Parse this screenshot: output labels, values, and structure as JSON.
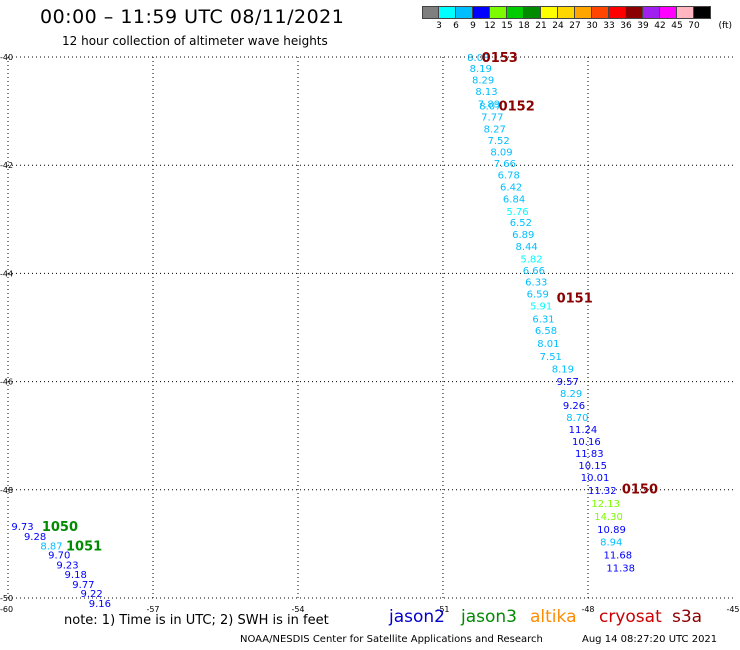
{
  "header": {
    "title": "00:00 – 11:59 UTC 08/11/2021",
    "subtitle": "12 hour collection of altimeter wave heights"
  },
  "colorbar": {
    "unit": "(ft)",
    "levels": [
      "3",
      "6",
      "9",
      "12",
      "15",
      "18",
      "21",
      "24",
      "27",
      "30",
      "33",
      "36",
      "39",
      "42",
      "45",
      "70"
    ],
    "colors": [
      "#7f7f7f",
      "#00ffff",
      "#00bfff",
      "#0000ff",
      "#7cfc00",
      "#00cd00",
      "#008b00",
      "#ffff00",
      "#ffd700",
      "#ffa500",
      "#ff4500",
      "#ff0000",
      "#8b0000",
      "#a020f0",
      "#ff00ff",
      "#ffb6c1",
      "#000000"
    ]
  },
  "footer": {
    "note": "note:  1) Time is in UTC; 2) SWH is in feet",
    "credit": "NOAA/NESDIS Center for Satellite Applications and Research",
    "timestamp": "Aug 14 08:27:20 UTC 2021"
  },
  "legend": [
    {
      "name": "jason2",
      "color": "#0000cc"
    },
    {
      "name": "jason3",
      "color": "#008b00"
    },
    {
      "name": "altika",
      "color": "#ff8c00"
    },
    {
      "name": "cryosat",
      "color": "#cc0000"
    },
    {
      "name": "s3a",
      "color": "#8b0000"
    }
  ],
  "chart_data": {
    "type": "scatter",
    "xlim": [
      -60,
      -45
    ],
    "ylim": [
      -50,
      -40
    ],
    "x_ticks": [
      -57,
      -54,
      -51,
      -48,
      -45
    ],
    "y_ticks": [
      -42,
      -44,
      -46,
      -48
    ],
    "corner_labels": {
      "x_left": "-60",
      "y_top": "-40",
      "y_bottom": "-50"
    },
    "grid": true,
    "time_labels": [
      {
        "label": "0153",
        "x": -50.2,
        "y": -40.0,
        "color": "#8b0000"
      },
      {
        "label": "0152",
        "x": -49.85,
        "y": -40.9,
        "color": "#8b0000"
      },
      {
        "label": "0151",
        "x": -48.65,
        "y": -44.45,
        "color": "#8b0000"
      },
      {
        "label": "0150",
        "x": -47.3,
        "y": -47.98,
        "color": "#8b0000"
      },
      {
        "label": "1050",
        "x": -59.3,
        "y": -48.67,
        "color": "#008b00"
      },
      {
        "label": "1051",
        "x": -58.8,
        "y": -49.03,
        "color": "#008b00"
      }
    ],
    "series": [
      {
        "color_key": "swh",
        "points": [
          {
            "x": -50.5,
            "y": -40.0,
            "v": "8.08",
            "c": "#00bfff"
          },
          {
            "x": -50.45,
            "y": -40.2,
            "v": "8.19",
            "c": "#00bfff"
          },
          {
            "x": -50.4,
            "y": -40.42,
            "v": "8.29",
            "c": "#00bfff"
          },
          {
            "x": -50.33,
            "y": -40.63,
            "v": "8.13",
            "c": "#00bfff"
          },
          {
            "x": -50.28,
            "y": -40.86,
            "v": "7.89",
            "c": "#00bfff"
          },
          {
            "x": -50.25,
            "y": -40.9,
            "v": "8.07",
            "c": "#00bfff"
          },
          {
            "x": -50.21,
            "y": -41.1,
            "v": "7.77",
            "c": "#00bfff"
          },
          {
            "x": -50.16,
            "y": -41.32,
            "v": "8.27",
            "c": "#00bfff"
          },
          {
            "x": -50.08,
            "y": -41.53,
            "v": "7.52",
            "c": "#00bfff"
          },
          {
            "x": -50.02,
            "y": -41.75,
            "v": "8.09",
            "c": "#00bfff"
          },
          {
            "x": -49.95,
            "y": -41.96,
            "v": "7.66",
            "c": "#00bfff"
          },
          {
            "x": -49.87,
            "y": -42.17,
            "v": "6.78",
            "c": "#00bfff"
          },
          {
            "x": -49.82,
            "y": -42.39,
            "v": "6.42",
            "c": "#00bfff"
          },
          {
            "x": -49.76,
            "y": -42.62,
            "v": "6.84",
            "c": "#00bfff"
          },
          {
            "x": -49.69,
            "y": -42.85,
            "v": "5.76",
            "c": "#00ffff"
          },
          {
            "x": -49.62,
            "y": -43.05,
            "v": "6.52",
            "c": "#00bfff"
          },
          {
            "x": -49.57,
            "y": -43.27,
            "v": "6.89",
            "c": "#00bfff"
          },
          {
            "x": -49.5,
            "y": -43.49,
            "v": "8.44",
            "c": "#00bfff"
          },
          {
            "x": -49.4,
            "y": -43.72,
            "v": "5.82",
            "c": "#00ffff"
          },
          {
            "x": -49.35,
            "y": -43.94,
            "v": "6.66",
            "c": "#00bfff"
          },
          {
            "x": -49.3,
            "y": -44.15,
            "v": "6.33",
            "c": "#00bfff"
          },
          {
            "x": -49.27,
            "y": -44.37,
            "v": "6.59",
            "c": "#00bfff"
          },
          {
            "x": -49.2,
            "y": -44.59,
            "v": "5.91",
            "c": "#00ffff"
          },
          {
            "x": -49.15,
            "y": -44.83,
            "v": "6.31",
            "c": "#00bfff"
          },
          {
            "x": -49.1,
            "y": -45.05,
            "v": "6.58",
            "c": "#00bfff"
          },
          {
            "x": -49.05,
            "y": -45.29,
            "v": "8.01",
            "c": "#00bfff"
          },
          {
            "x": -49.0,
            "y": -45.53,
            "v": "7.51",
            "c": "#00bfff"
          },
          {
            "x": -48.75,
            "y": -45.76,
            "v": "8.19",
            "c": "#00bfff"
          },
          {
            "x": -48.65,
            "y": -45.99,
            "v": "9.57",
            "c": "#0000ff"
          },
          {
            "x": -48.58,
            "y": -46.21,
            "v": "8.29",
            "c": "#00bfff"
          },
          {
            "x": -48.52,
            "y": -46.43,
            "v": "9.26",
            "c": "#0000ff"
          },
          {
            "x": -48.45,
            "y": -46.65,
            "v": "8.70",
            "c": "#00bfff"
          },
          {
            "x": -48.4,
            "y": -46.88,
            "v": "11.24",
            "c": "#0000ff"
          },
          {
            "x": -48.33,
            "y": -47.1,
            "v": "10.16",
            "c": "#0000ff"
          },
          {
            "x": -48.27,
            "y": -47.32,
            "v": "11.83",
            "c": "#0000ff"
          },
          {
            "x": -48.2,
            "y": -47.54,
            "v": "10.15",
            "c": "#0000ff"
          },
          {
            "x": -48.15,
            "y": -47.76,
            "v": "10.01",
            "c": "#0000ff"
          },
          {
            "x": -48.0,
            "y": -48.0,
            "v": "11.32",
            "c": "#0000ff"
          },
          {
            "x": -47.93,
            "y": -48.24,
            "v": "12.13",
            "c": "#7cfc00"
          },
          {
            "x": -47.87,
            "y": -48.48,
            "v": "14.30",
            "c": "#7cfc00"
          },
          {
            "x": -47.81,
            "y": -48.72,
            "v": "10.89",
            "c": "#0000ff"
          },
          {
            "x": -47.75,
            "y": -48.96,
            "v": "8.94",
            "c": "#00bfff"
          },
          {
            "x": -47.68,
            "y": -49.2,
            "v": "11.68",
            "c": "#0000ff"
          },
          {
            "x": -47.62,
            "y": -49.44,
            "v": "11.38",
            "c": "#0000ff"
          }
        ]
      },
      {
        "color_key": "swh",
        "points": [
          {
            "x": -59.93,
            "y": -48.67,
            "v": "9.73",
            "c": "#0000ff"
          },
          {
            "x": -59.67,
            "y": -48.85,
            "v": "9.28",
            "c": "#0000ff"
          },
          {
            "x": -59.33,
            "y": -49.03,
            "v": "8.87",
            "c": "#00bfff"
          },
          {
            "x": -59.17,
            "y": -49.2,
            "v": "9.70",
            "c": "#0000ff"
          },
          {
            "x": -59.0,
            "y": -49.38,
            "v": "9.23",
            "c": "#0000ff"
          },
          {
            "x": -58.83,
            "y": -49.56,
            "v": "9.18",
            "c": "#0000ff"
          },
          {
            "x": -58.67,
            "y": -49.74,
            "v": "9.77",
            "c": "#0000ff"
          },
          {
            "x": -58.5,
            "y": -49.91,
            "v": "9.22",
            "c": "#0000ff"
          },
          {
            "x": -58.33,
            "y": -50.09,
            "v": "9.16",
            "c": "#0000ff"
          }
        ]
      }
    ]
  }
}
